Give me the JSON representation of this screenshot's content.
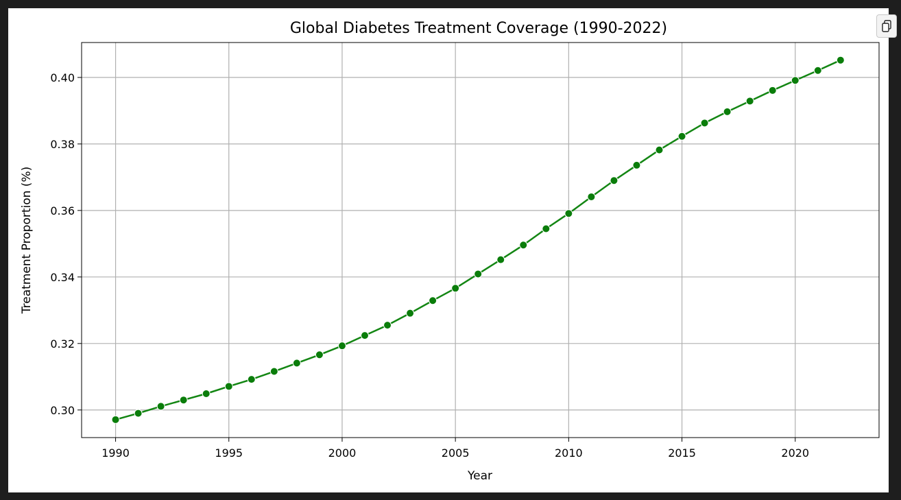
{
  "colors": {
    "line": "#138613",
    "marker": "#0a7d0a",
    "grid": "#b0b0b0"
  },
  "toolbar": {
    "copy_icon": "copy-icon"
  },
  "chart_data": {
    "type": "line",
    "title": "Global Diabetes Treatment Coverage (1990-2022)",
    "xlabel": "Year",
    "ylabel": "Treatment Proportion (%)",
    "xlim": [
      1988.5,
      2023.7
    ],
    "ylim": [
      0.2917,
      0.4105
    ],
    "xticks": [
      1990,
      1995,
      2000,
      2005,
      2010,
      2015,
      2020
    ],
    "yticks": [
      0.3,
      0.32,
      0.34,
      0.36,
      0.38,
      0.4
    ],
    "xtick_labels": [
      "1990",
      "1995",
      "2000",
      "2005",
      "2010",
      "2015",
      "2020"
    ],
    "ytick_labels": [
      "0.30",
      "0.32",
      "0.34",
      "0.36",
      "0.38",
      "0.40"
    ],
    "grid": true,
    "marker": "circle",
    "x": [
      1990,
      1991,
      1992,
      1993,
      1994,
      1995,
      1996,
      1997,
      1998,
      1999,
      2000,
      2001,
      2002,
      2003,
      2004,
      2005,
      2006,
      2007,
      2008,
      2009,
      2010,
      2011,
      2012,
      2013,
      2014,
      2015,
      2016,
      2017,
      2018,
      2019,
      2020,
      2021,
      2022
    ],
    "y": [
      0.2971,
      0.299,
      0.3011,
      0.303,
      0.3049,
      0.3071,
      0.3092,
      0.3116,
      0.3141,
      0.3166,
      0.3193,
      0.3224,
      0.3255,
      0.3291,
      0.3329,
      0.3366,
      0.3409,
      0.3452,
      0.3496,
      0.3545,
      0.3591,
      0.3641,
      0.369,
      0.3736,
      0.3782,
      0.3823,
      0.3863,
      0.3897,
      0.3929,
      0.3961,
      0.3991,
      0.4021,
      0.4052
    ]
  }
}
